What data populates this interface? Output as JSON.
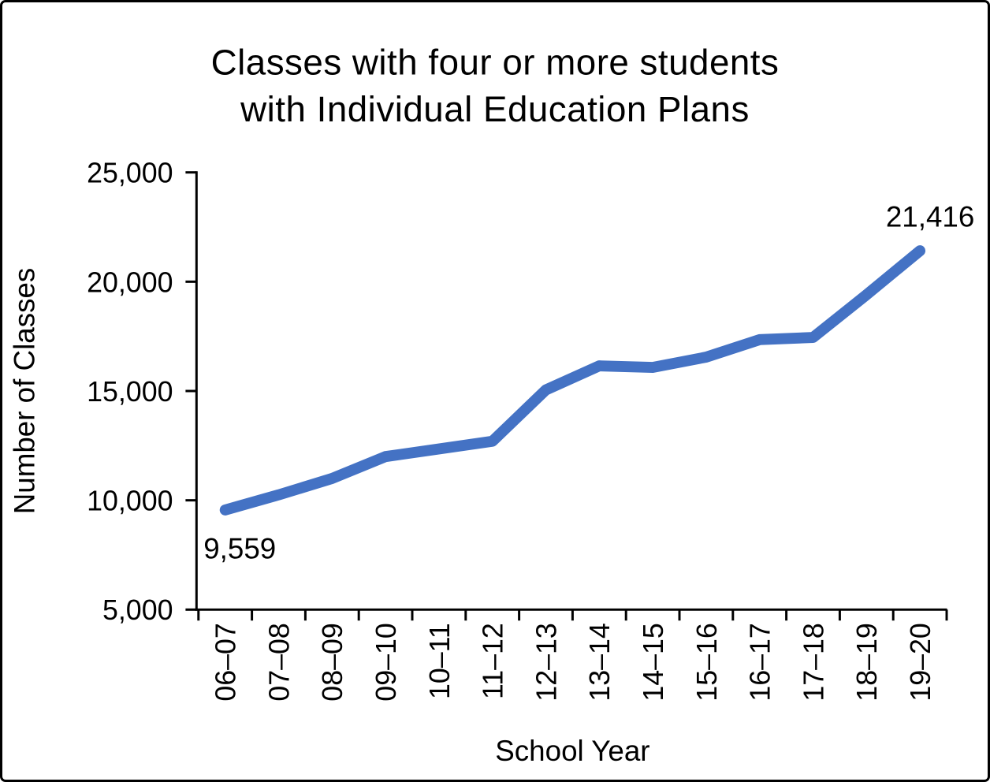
{
  "chart_data": {
    "type": "line",
    "title": "Classes with four or more students with Individual Education Plans",
    "title_lines": [
      "Classes with four or more students",
      "with Individual Education Plans"
    ],
    "xlabel": "School Year",
    "ylabel": "Number of Classes",
    "categories": [
      "06–07",
      "07–08",
      "08–09",
      "09–10",
      "10–11",
      "11–12",
      "12–13",
      "13–14",
      "14–15",
      "15–16",
      "16–17",
      "17–18",
      "18–19",
      "19–20"
    ],
    "values": [
      9559,
      10250,
      11000,
      12000,
      12350,
      12700,
      15050,
      16150,
      16080,
      16550,
      17350,
      17450,
      19400,
      21416
    ],
    "ylim": [
      5000,
      25000
    ],
    "ytick_interval": 5000,
    "ytick_labels": [
      "5,000",
      "10,000",
      "15,000",
      "20,000",
      "25,000"
    ],
    "grid": false,
    "legend": "none",
    "line_color": "#4472C4",
    "axis_color": "#000000",
    "text_color": "#000000",
    "data_labels": {
      "first": "9,559",
      "last": "21,416"
    }
  }
}
